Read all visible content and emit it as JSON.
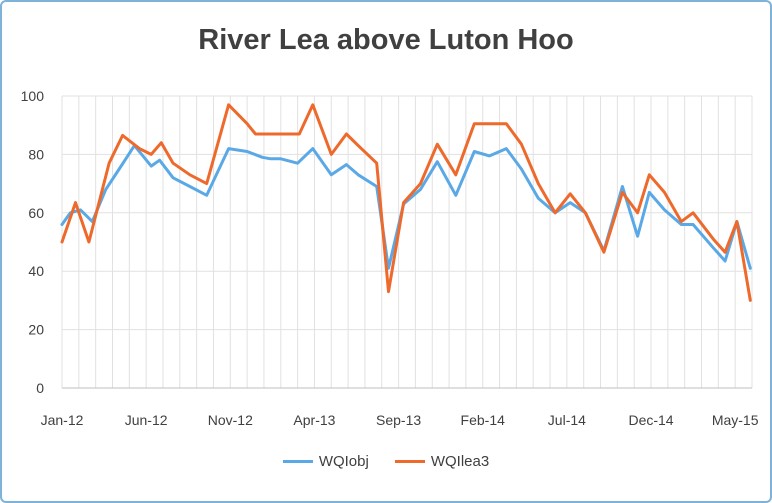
{
  "chart_data": {
    "type": "line",
    "title": "River Lea above Luton Hoo",
    "xlabel": "",
    "ylabel": "",
    "ylim": [
      0,
      100
    ],
    "yticks": [
      0,
      20,
      40,
      60,
      80,
      100
    ],
    "xlim": [
      0,
      41
    ],
    "xticks": [
      {
        "label": "Jan-12",
        "x": 0
      },
      {
        "label": "Jun-12",
        "x": 5
      },
      {
        "label": "Nov-12",
        "x": 10
      },
      {
        "label": "Apr-13",
        "x": 15
      },
      {
        "label": "Sep-13",
        "x": 20
      },
      {
        "label": "Feb-14",
        "x": 25
      },
      {
        "label": "Jul-14",
        "x": 30
      },
      {
        "label": "Dec-14",
        "x": 35
      },
      {
        "label": "May-15",
        "x": 40
      }
    ],
    "grid": "vertical and horizontal",
    "legend_position": "bottom",
    "series": [
      {
        "name": "WQIobj",
        "color": "#5aa9e6",
        "points": [
          [
            0,
            56
          ],
          [
            0.5,
            60
          ],
          [
            1.1,
            61
          ],
          [
            1.8,
            57
          ],
          [
            2.6,
            68
          ],
          [
            3.4,
            75
          ],
          [
            4.3,
            83
          ],
          [
            5.3,
            76
          ],
          [
            5.8,
            78
          ],
          [
            6.6,
            72
          ],
          [
            7.6,
            69
          ],
          [
            8.6,
            66
          ],
          [
            9.9,
            82
          ],
          [
            11,
            81
          ],
          [
            11.9,
            79
          ],
          [
            12.4,
            78.5
          ],
          [
            13,
            78.5
          ],
          [
            14,
            77
          ],
          [
            14.9,
            82
          ],
          [
            16,
            73
          ],
          [
            16.9,
            76.5
          ],
          [
            17.6,
            73
          ],
          [
            18.7,
            69
          ],
          [
            19.4,
            41
          ],
          [
            20.3,
            63
          ],
          [
            21.3,
            68
          ],
          [
            22.3,
            77.5
          ],
          [
            23.4,
            66
          ],
          [
            24.5,
            81
          ],
          [
            25.4,
            79.5
          ],
          [
            26.4,
            82
          ],
          [
            27.3,
            75
          ],
          [
            28.3,
            65
          ],
          [
            29.3,
            60
          ],
          [
            30.2,
            63.5
          ],
          [
            31.1,
            60
          ],
          [
            32.2,
            47
          ],
          [
            33.3,
            69
          ],
          [
            34.2,
            52
          ],
          [
            34.9,
            67
          ],
          [
            35.8,
            61
          ],
          [
            36.8,
            56
          ],
          [
            37.5,
            56
          ],
          [
            38.7,
            48
          ],
          [
            39.4,
            43.5
          ],
          [
            40.1,
            57
          ],
          [
            40.9,
            41
          ]
        ]
      },
      {
        "name": "WQIlea3",
        "color": "#ee6a2c",
        "points": [
          [
            0,
            50
          ],
          [
            0.8,
            63.5
          ],
          [
            1.6,
            50
          ],
          [
            2.8,
            77
          ],
          [
            3.6,
            86.5
          ],
          [
            4.6,
            82
          ],
          [
            5.3,
            80
          ],
          [
            5.9,
            84
          ],
          [
            6.6,
            77
          ],
          [
            7.6,
            73
          ],
          [
            8.6,
            70
          ],
          [
            9.9,
            97
          ],
          [
            11,
            90.5
          ],
          [
            11.5,
            87
          ],
          [
            12.3,
            87
          ],
          [
            13.4,
            87
          ],
          [
            14.1,
            87
          ],
          [
            14.9,
            97
          ],
          [
            16,
            80
          ],
          [
            16.9,
            87
          ],
          [
            17.6,
            83
          ],
          [
            18.7,
            77
          ],
          [
            19.4,
            33
          ],
          [
            20.3,
            63.5
          ],
          [
            21.3,
            70
          ],
          [
            22.3,
            83.5
          ],
          [
            23.4,
            73
          ],
          [
            24.5,
            90.5
          ],
          [
            25.4,
            90.5
          ],
          [
            26.4,
            90.5
          ],
          [
            27.3,
            83.5
          ],
          [
            28.3,
            70
          ],
          [
            29.3,
            60
          ],
          [
            30.2,
            66.5
          ],
          [
            31.1,
            60
          ],
          [
            32.2,
            46.5
          ],
          [
            33.3,
            67
          ],
          [
            34.2,
            60
          ],
          [
            34.9,
            73
          ],
          [
            35.8,
            67
          ],
          [
            36.8,
            57
          ],
          [
            37.5,
            60
          ],
          [
            38.7,
            51
          ],
          [
            39.4,
            46.5
          ],
          [
            40.1,
            57
          ],
          [
            40.9,
            30
          ]
        ]
      }
    ]
  }
}
